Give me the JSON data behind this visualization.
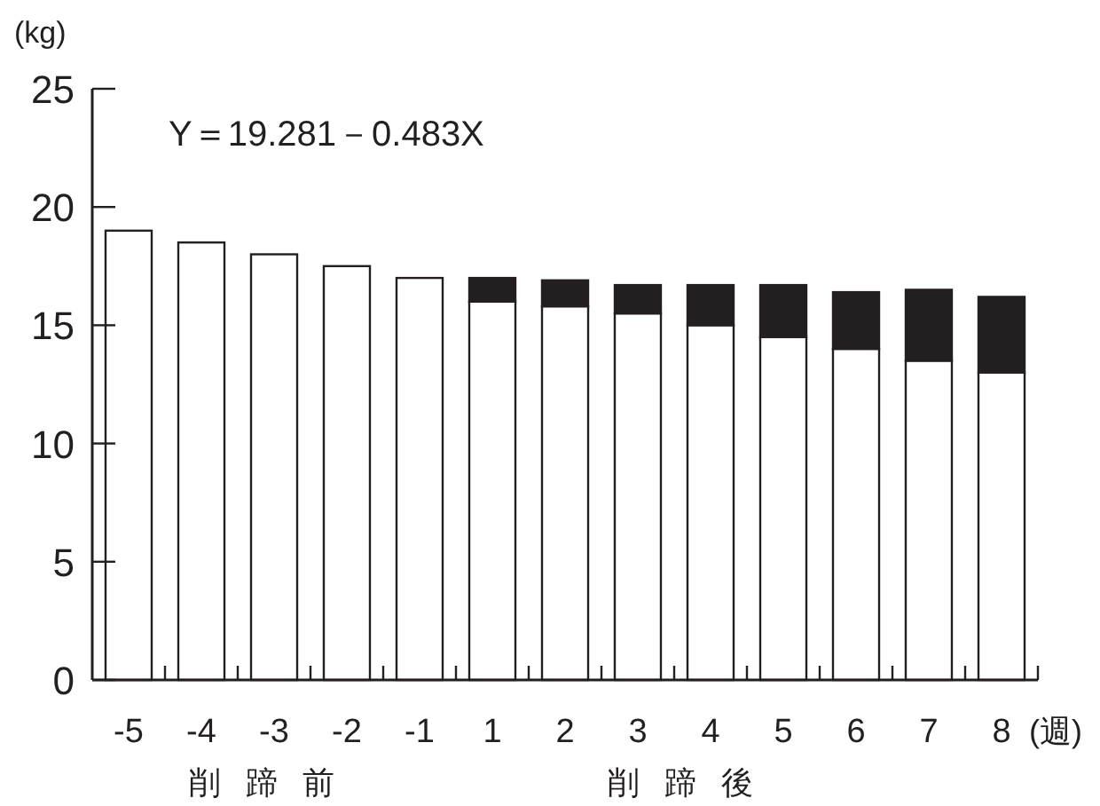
{
  "chart_data": {
    "type": "bar",
    "stacked": true,
    "xlabel": "(週)",
    "ylabel": "(kg)",
    "categories": [
      "-5",
      "-4",
      "-3",
      "-2",
      "-1",
      "1",
      "2",
      "3",
      "4",
      "5",
      "6",
      "7",
      "8"
    ],
    "series": [
      {
        "color": "#ffffff",
        "values": [
          19.0,
          18.5,
          18.0,
          17.5,
          17.0,
          16.0,
          15.8,
          15.5,
          15.0,
          14.5,
          14.0,
          13.5,
          13.0
        ]
      },
      {
        "color": "#231f20",
        "values": [
          null,
          null,
          null,
          null,
          null,
          1.0,
          1.1,
          1.2,
          1.7,
          2.2,
          2.4,
          3.0,
          3.2
        ]
      }
    ],
    "ylim": [
      0,
      25
    ],
    "yticks": [
      0,
      5,
      10,
      15,
      20,
      25
    ],
    "annotations": [
      "Y＝19.281－0.483X",
      "削蹄前",
      "削蹄後"
    ]
  }
}
